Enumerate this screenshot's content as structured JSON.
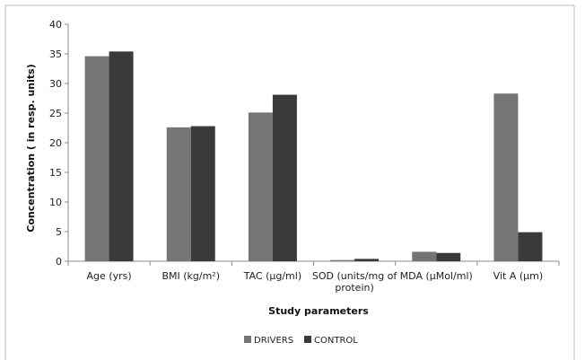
{
  "chart_data": {
    "type": "bar",
    "categories": [
      [
        "Age (yrs)"
      ],
      [
        "BMI (kg/m²)"
      ],
      [
        "TAC (µg/ml)"
      ],
      [
        "SOD (units/mg of",
        "protein)"
      ],
      [
        "MDA (µMol/ml)"
      ],
      [
        "Vit A (µm)"
      ]
    ],
    "series": [
      {
        "name": "DRIVERS",
        "color": "#757575",
        "values": [
          34.6,
          22.6,
          25.1,
          0.2,
          1.6,
          28.3
        ]
      },
      {
        "name": "CONTROL",
        "color": "#3a3a3a",
        "values": [
          35.4,
          22.8,
          28.1,
          0.4,
          1.4,
          4.9
        ]
      }
    ],
    "title": "",
    "xlabel": "Study parameters",
    "ylabel": "Concentration ( in resp. units)",
    "ylim": [
      0,
      40
    ],
    "yticks": [
      0,
      5,
      10,
      15,
      20,
      25,
      30,
      35,
      40
    ],
    "legend_position": "bottom"
  }
}
